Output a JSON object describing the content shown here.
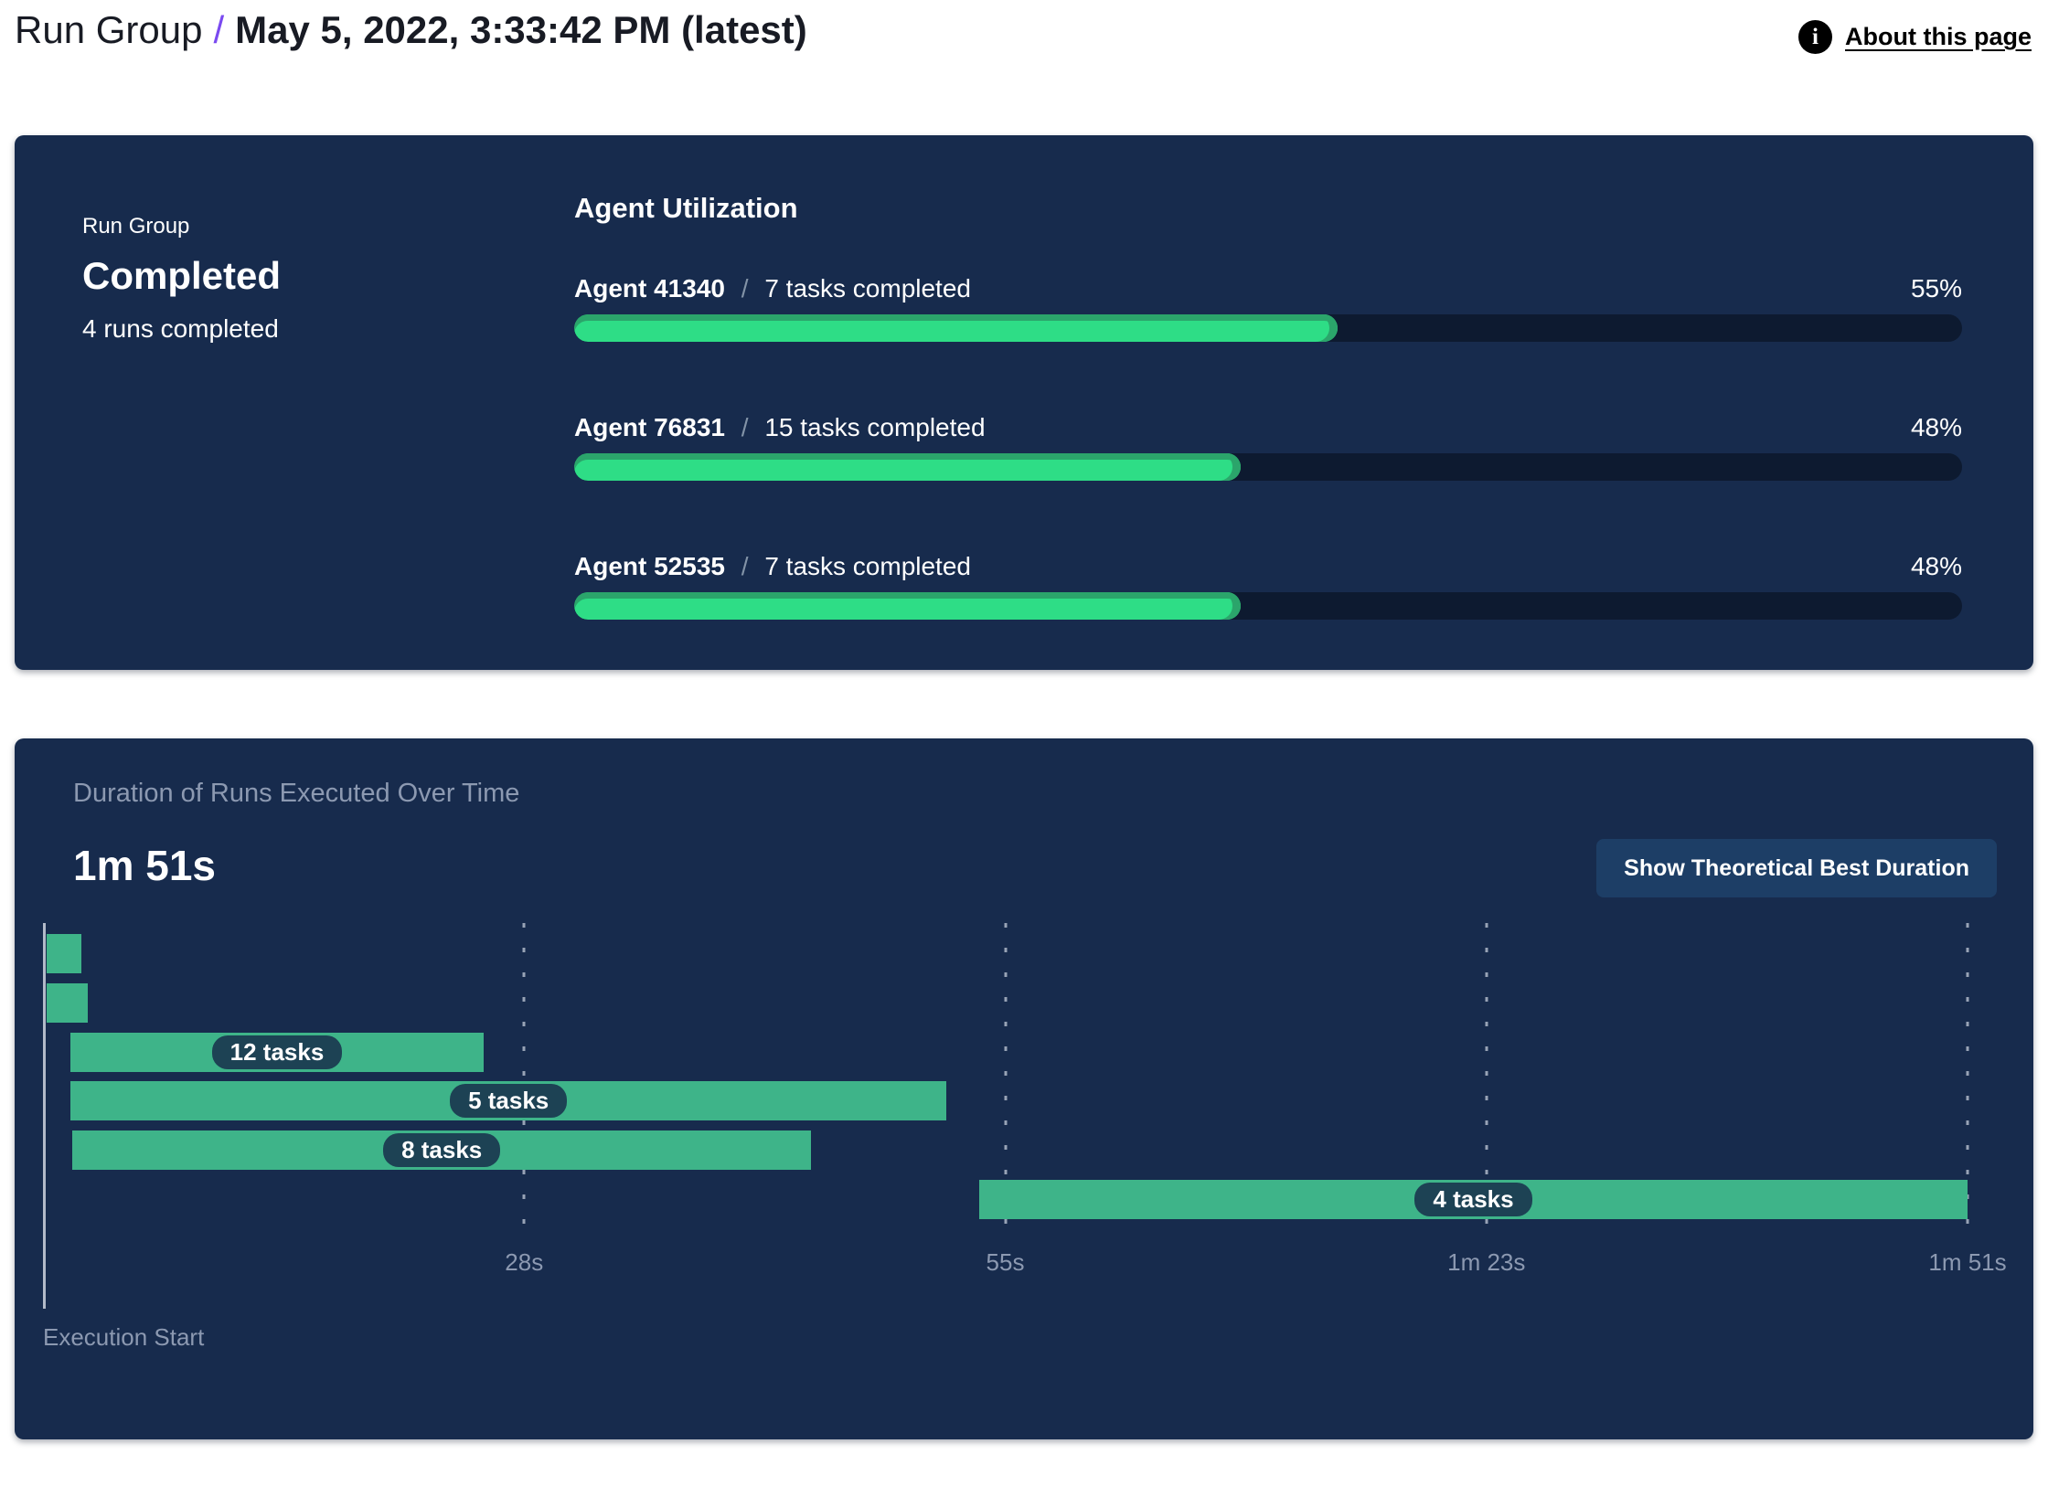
{
  "header": {
    "breadcrumb_root": "Run Group",
    "separator": "/",
    "title": "May 5, 2022, 3:33:42 PM (latest)",
    "about_label": "About this page",
    "info_icon": "i"
  },
  "summary": {
    "label": "Run Group",
    "status": "Completed",
    "sub": "4 runs completed"
  },
  "agent_utilization": {
    "title": "Agent Utilization",
    "separator": "/",
    "agents": [
      {
        "name": "Agent 41340",
        "tasks": "7 tasks completed",
        "percent": 55,
        "percent_label": "55%"
      },
      {
        "name": "Agent 76831",
        "tasks": "15 tasks completed",
        "percent": 48,
        "percent_label": "48%"
      },
      {
        "name": "Agent 52535",
        "tasks": "7 tasks completed",
        "percent": 48,
        "percent_label": "48%"
      }
    ]
  },
  "duration_chart": {
    "subtitle": "Duration of Runs Executed Over Time",
    "total_duration": "1m 51s",
    "button_label": "Show Theoretical Best Duration",
    "axis_label": "Execution Start",
    "total_seconds": 111,
    "ticks": [
      {
        "label": "28s",
        "seconds": 27.75
      },
      {
        "label": "55s",
        "seconds": 55.5
      },
      {
        "label": "1m 23s",
        "seconds": 83.25
      },
      {
        "label": "1m 51s",
        "seconds": 111
      }
    ],
    "runs": [
      {
        "start": 0.2,
        "end": 2.2,
        "label": ""
      },
      {
        "start": 0.2,
        "end": 2.6,
        "label": ""
      },
      {
        "start": 1.6,
        "end": 25.4,
        "label": "12 tasks"
      },
      {
        "start": 1.6,
        "end": 52.1,
        "label": "5 tasks"
      },
      {
        "start": 1.7,
        "end": 44.3,
        "label": "8 tasks"
      },
      {
        "start": 54,
        "end": 111,
        "label": "4 tasks"
      }
    ]
  },
  "colors": {
    "panel_navy": "#172b4d",
    "bar_track": "#0d1a30",
    "progress_green": "#2edd86",
    "progress_green_rim": "#2ba56b",
    "gantt_green": "#3eb489",
    "pill_navy": "#1d4254",
    "button_blue": "#1d3e66",
    "muted_text": "#8c99b1",
    "accent_purple": "#7a4af0"
  }
}
